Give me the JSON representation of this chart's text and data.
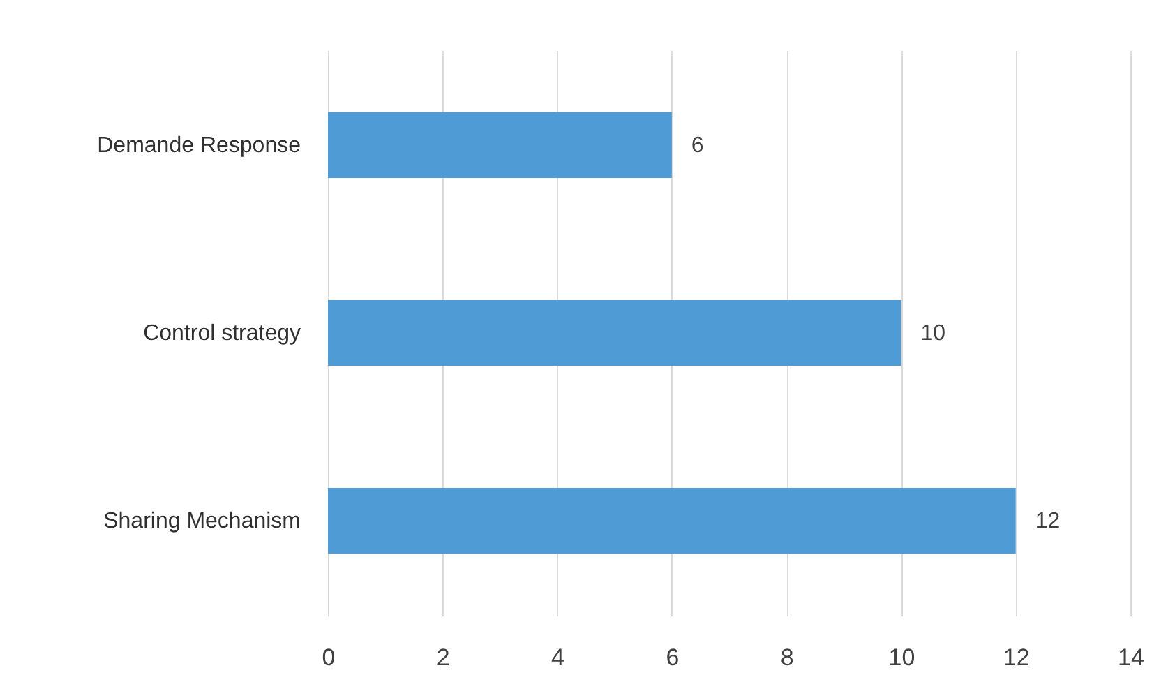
{
  "chart_data": {
    "type": "bar",
    "orientation": "horizontal",
    "categories": [
      "Demande Response",
      "Control strategy",
      "Sharing Mechanism"
    ],
    "values": [
      6,
      10,
      12
    ],
    "color": "#4e9bd5",
    "xlim": [
      0,
      14
    ],
    "xticks": [
      0,
      2,
      4,
      6,
      8,
      10,
      12,
      14
    ],
    "grid": "x",
    "data_labels": true
  }
}
